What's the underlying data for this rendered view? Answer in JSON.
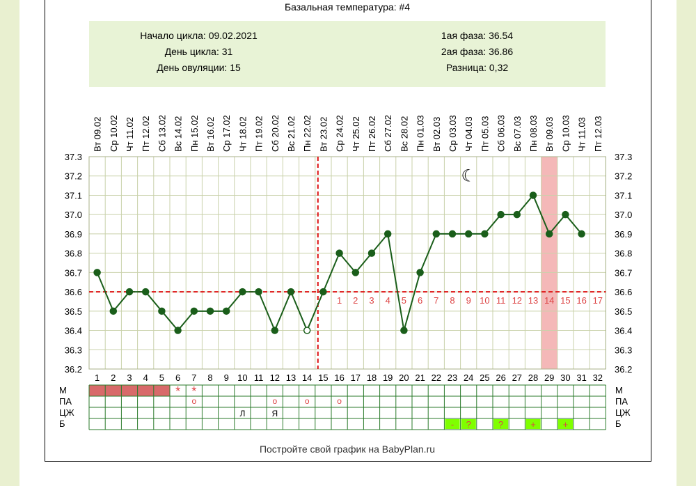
{
  "title": "Базальная температура: #4",
  "info": {
    "cycle_start": "Начало цикла: 09.02.2021",
    "cycle_day": "День цикла: 31",
    "ovulation_day": "День овуляции: 15",
    "phase1": "1ая фаза: 36.54",
    "phase2": "2ая фаза: 36.86",
    "difference": "Разница: 0,32"
  },
  "footer": "Постройте свой график на BabyPlan.ru",
  "colors": {
    "line": "#1a5e1a",
    "cover_line": "#dd1111",
    "phase_numbers": "#dd4444",
    "highlight_band": "#f4b8b8",
    "grid": "#c9d1aa",
    "menstruation": "#d86a6a",
    "marker_box": "#7fff00"
  },
  "chart_data": {
    "type": "line",
    "title": "Базальная температура: #4",
    "date_labels": [
      "Вт 09.02",
      "Ср 10.02",
      "Чт 11.02",
      "Пт 12.02",
      "Сб 13.02",
      "Вс 14.02",
      "Пн 15.02",
      "Вт 16.02",
      "Ср 17.02",
      "Чт 18.02",
      "Пт 19.02",
      "Сб 20.02",
      "Вс 21.02",
      "Пн 22.02",
      "Вт 23.02",
      "Ср 24.02",
      "Чт 25.02",
      "Пт 26.02",
      "Сб 27.02",
      "Вс 28.02",
      "Пн 01.03",
      "Вт 02.03",
      "Ср 03.03",
      "Чт 04.03",
      "Пт 05.03",
      "Сб 06.03",
      "Вс 07.03",
      "Пн 08.03",
      "Вт 09.03",
      "Ср 10.03",
      "Чт 11.03",
      "Пт 12.03"
    ],
    "days": [
      1,
      2,
      3,
      4,
      5,
      6,
      7,
      8,
      9,
      10,
      11,
      12,
      13,
      14,
      15,
      16,
      17,
      18,
      19,
      20,
      21,
      22,
      23,
      24,
      25,
      26,
      27,
      28,
      29,
      30,
      31,
      32
    ],
    "y_ticks": [
      "37.3",
      "37.2",
      "37.1",
      "37.0",
      "36.9",
      "36.8",
      "36.7",
      "36.6",
      "36.5",
      "36.4",
      "36.3",
      "36.2"
    ],
    "ylim": [
      36.2,
      37.3
    ],
    "grid": true,
    "series": [
      {
        "values": [
          36.7,
          36.5,
          36.6,
          36.6,
          36.5,
          36.4,
          36.5,
          36.5,
          36.5,
          36.6,
          36.6,
          36.4,
          36.6,
          36.4,
          36.6,
          36.8,
          36.7,
          36.8,
          36.9,
          36.4,
          36.7,
          36.9,
          36.9,
          36.9,
          36.9,
          37.0,
          37.0,
          37.1,
          36.9,
          37.0,
          36.9
        ]
      }
    ],
    "open_point_days": [
      14
    ],
    "cover_line": 36.6,
    "ovulation_day": 15,
    "phase_numbers": [
      "1",
      "2",
      "3",
      "4",
      "5",
      "6",
      "7",
      "8",
      "9",
      "10",
      "11",
      "12",
      "13",
      "14",
      "15",
      "16",
      "17"
    ],
    "highlight_day": 29,
    "moon_day": 24,
    "moon_symbol": "☾"
  },
  "grid_rows": {
    "labels": [
      "М",
      "ПА",
      "ЦЖ",
      "Б"
    ],
    "menstruation_days": [
      1,
      2,
      3,
      4,
      5
    ],
    "stars": [
      {
        "day": 6,
        "symbol": "*"
      },
      {
        "day": 7,
        "symbol": "*"
      }
    ],
    "pa_marks": [
      {
        "day": 7,
        "symbol": "o"
      },
      {
        "day": 12,
        "symbol": "o"
      },
      {
        "day": 14,
        "symbol": "o"
      },
      {
        "day": 16,
        "symbol": "o"
      }
    ],
    "cervical_marks": [
      {
        "day": 10,
        "symbol": "Л"
      },
      {
        "day": 12,
        "symbol": "Я"
      }
    ],
    "b_marks": [
      {
        "day": 23,
        "symbol": "-"
      },
      {
        "day": 24,
        "symbol": "?"
      },
      {
        "day": 26,
        "symbol": "?"
      },
      {
        "day": 28,
        "symbol": "+"
      },
      {
        "day": 30,
        "symbol": "+"
      }
    ]
  }
}
